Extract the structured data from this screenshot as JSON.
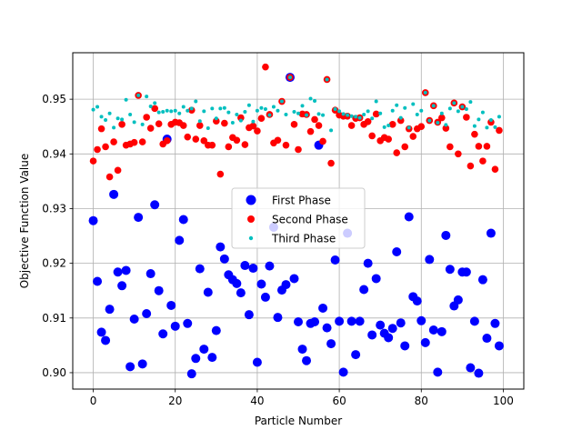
{
  "chart_data": {
    "type": "scatter",
    "title": "",
    "xlabel": "Particle Number",
    "ylabel": "Objective Function Value",
    "xlim": [
      -5,
      105
    ],
    "ylim": [
      0.897,
      0.9585
    ],
    "xticks": [
      "0",
      "20",
      "40",
      "60",
      "80",
      "100"
    ],
    "yticks": [
      "0.90",
      "0.91",
      "0.92",
      "0.93",
      "0.94",
      "0.95"
    ],
    "grid": true,
    "legend": "center",
    "series": [
      {
        "name": "First Phase",
        "color": "#0000ff",
        "marker": "large",
        "x": [
          0,
          1,
          2,
          3,
          4,
          5,
          6,
          7,
          8,
          9,
          10,
          11,
          12,
          13,
          14,
          15,
          16,
          17,
          18,
          19,
          20,
          21,
          22,
          23,
          24,
          25,
          26,
          27,
          28,
          29,
          30,
          31,
          32,
          33,
          34,
          35,
          36,
          37,
          38,
          39,
          40,
          41,
          42,
          43,
          44,
          45,
          46,
          47,
          48,
          49,
          50,
          51,
          52,
          53,
          54,
          55,
          56,
          57,
          58,
          59,
          60,
          61,
          62,
          63,
          64,
          65,
          66,
          67,
          68,
          69,
          70,
          71,
          72,
          73,
          74,
          75,
          76,
          77,
          78,
          79,
          80,
          81,
          82,
          83,
          84,
          85,
          86,
          87,
          88,
          89,
          90,
          91,
          92,
          93,
          94,
          95,
          96,
          97,
          98,
          99
        ],
        "y": [
          0.9278,
          0.9167,
          0.9074,
          0.9059,
          0.9116,
          0.9326,
          0.9184,
          0.9159,
          0.9187,
          0.9011,
          0.9098,
          0.9284,
          0.9016,
          0.9108,
          0.9181,
          0.9307,
          0.915,
          0.9071,
          0.9427,
          0.9123,
          0.9085,
          0.9242,
          0.928,
          0.909,
          0.8998,
          0.9026,
          0.919,
          0.9043,
          0.9147,
          0.9028,
          0.9077,
          0.923,
          0.9208,
          0.9179,
          0.917,
          0.9163,
          0.9146,
          0.9196,
          0.9106,
          0.9191,
          0.9019,
          0.9162,
          0.9138,
          0.9195,
          0.9266,
          0.9101,
          0.9151,
          0.9161,
          0.954,
          0.9172,
          0.9093,
          0.9043,
          0.9022,
          0.909,
          0.9093,
          0.9416,
          0.9118,
          0.9082,
          0.9053,
          0.9206,
          0.9094,
          0.9001,
          0.9255,
          0.9094,
          0.9033,
          0.9094,
          0.9152,
          0.92,
          0.9069,
          0.9172,
          0.9087,
          0.9072,
          0.9064,
          0.9081,
          0.9221,
          0.9091,
          0.9049,
          0.9285,
          0.9139,
          0.9131,
          0.9095,
          0.9055,
          0.9207,
          0.9078,
          0.9001,
          0.9075,
          0.9251,
          0.9189,
          0.9122,
          0.9133,
          0.9184,
          0.9184,
          0.9009,
          0.9094,
          0.8999,
          0.917,
          0.9063,
          0.9255,
          0.909,
          0.9049
        ]
      },
      {
        "name": "Second Phase",
        "color": "#ff0000",
        "marker": "medium",
        "x": [
          0,
          1,
          2,
          3,
          4,
          5,
          6,
          7,
          8,
          9,
          10,
          11,
          12,
          13,
          14,
          15,
          16,
          17,
          18,
          19,
          20,
          21,
          22,
          23,
          24,
          25,
          26,
          27,
          28,
          29,
          30,
          31,
          32,
          33,
          34,
          35,
          36,
          37,
          38,
          39,
          40,
          41,
          42,
          43,
          44,
          45,
          46,
          47,
          48,
          49,
          50,
          51,
          52,
          53,
          54,
          55,
          56,
          57,
          58,
          59,
          60,
          61,
          62,
          63,
          64,
          65,
          66,
          67,
          68,
          69,
          70,
          71,
          72,
          73,
          74,
          75,
          76,
          77,
          78,
          79,
          80,
          81,
          82,
          83,
          84,
          85,
          86,
          87,
          88,
          89,
          90,
          91,
          92,
          93,
          94,
          95,
          96,
          97,
          98,
          99
        ],
        "y": [
          0.9387,
          0.9408,
          0.9446,
          0.9413,
          0.9358,
          0.9422,
          0.937,
          0.9454,
          0.9416,
          0.9418,
          0.9421,
          0.9507,
          0.9422,
          0.9467,
          0.9447,
          0.9483,
          0.9455,
          0.9418,
          0.9424,
          0.9454,
          0.9458,
          0.9457,
          0.9452,
          0.9431,
          0.948,
          0.9427,
          0.9452,
          0.9424,
          0.9416,
          0.9416,
          0.946,
          0.9363,
          0.9456,
          0.9413,
          0.943,
          0.9425,
          0.9466,
          0.9417,
          0.9448,
          0.9451,
          0.9442,
          0.9465,
          0.9559,
          0.9472,
          0.942,
          0.9425,
          0.9496,
          0.9416,
          0.954,
          0.9454,
          0.9408,
          0.9473,
          0.9472,
          0.9441,
          0.9463,
          0.9452,
          0.9423,
          0.9536,
          0.9383,
          0.948,
          0.9471,
          0.9469,
          0.9469,
          0.9452,
          0.9465,
          0.9466,
          0.9454,
          0.9459,
          0.9433,
          0.9473,
          0.9424,
          0.943,
          0.9427,
          0.9454,
          0.9402,
          0.9461,
          0.9413,
          0.9446,
          0.9432,
          0.9446,
          0.945,
          0.9512,
          0.9461,
          0.9488,
          0.9458,
          0.9466,
          0.9447,
          0.9413,
          0.9493,
          0.94,
          0.9486,
          0.9467,
          0.9378,
          0.9436,
          0.9414,
          0.9387,
          0.9414,
          0.9458,
          0.9372,
          0.9443
        ]
      },
      {
        "name": "Third Phase",
        "color": "#00bfbf",
        "marker": "small",
        "x": [
          0,
          1,
          2,
          3,
          4,
          5,
          6,
          7,
          8,
          9,
          10,
          11,
          12,
          13,
          14,
          15,
          16,
          17,
          18,
          19,
          20,
          21,
          22,
          23,
          24,
          25,
          26,
          27,
          28,
          29,
          30,
          31,
          32,
          33,
          34,
          35,
          36,
          37,
          38,
          39,
          40,
          41,
          42,
          43,
          44,
          45,
          46,
          47,
          48,
          49,
          50,
          51,
          52,
          53,
          54,
          55,
          56,
          57,
          58,
          59,
          60,
          61,
          62,
          63,
          64,
          65,
          66,
          67,
          68,
          69,
          70,
          71,
          72,
          73,
          74,
          75,
          76,
          77,
          78,
          79,
          80,
          81,
          82,
          83,
          84,
          85,
          86,
          87,
          88,
          89,
          90,
          91,
          92,
          93,
          94,
          95,
          96,
          97,
          98,
          99
        ],
        "y": [
          0.9481,
          0.9486,
          0.9468,
          0.9462,
          0.9474,
          0.9448,
          0.9465,
          0.9463,
          0.9499,
          0.9472,
          0.9458,
          0.9507,
          0.9454,
          0.9505,
          0.9487,
          0.9493,
          0.9476,
          0.9477,
          0.9479,
          0.9478,
          0.9479,
          0.9474,
          0.9486,
          0.9479,
          0.9483,
          0.9496,
          0.946,
          0.9478,
          0.9447,
          0.9483,
          0.9465,
          0.9483,
          0.9484,
          0.9476,
          0.9457,
          0.9472,
          0.9461,
          0.9477,
          0.9489,
          0.9459,
          0.9479,
          0.9484,
          0.9482,
          0.9471,
          0.9486,
          0.9479,
          0.9496,
          0.9472,
          0.954,
          0.9477,
          0.9474,
          0.9488,
          0.9471,
          0.9501,
          0.9497,
          0.9473,
          0.9471,
          0.9536,
          0.9443,
          0.9482,
          0.9478,
          0.9473,
          0.9471,
          0.9469,
          0.9468,
          0.9466,
          0.9472,
          0.9478,
          0.9465,
          0.9496,
          0.9474,
          0.9449,
          0.9452,
          0.9479,
          0.9489,
          0.9466,
          0.9484,
          0.9448,
          0.9491,
          0.9472,
          0.9479,
          0.9512,
          0.9461,
          0.9488,
          0.9457,
          0.9474,
          0.9453,
          0.9483,
          0.9493,
          0.9478,
          0.9486,
          0.9482,
          0.9495,
          0.9451,
          0.9463,
          0.9476,
          0.9448,
          0.9462,
          0.9449,
          0.9468
        ]
      }
    ]
  }
}
